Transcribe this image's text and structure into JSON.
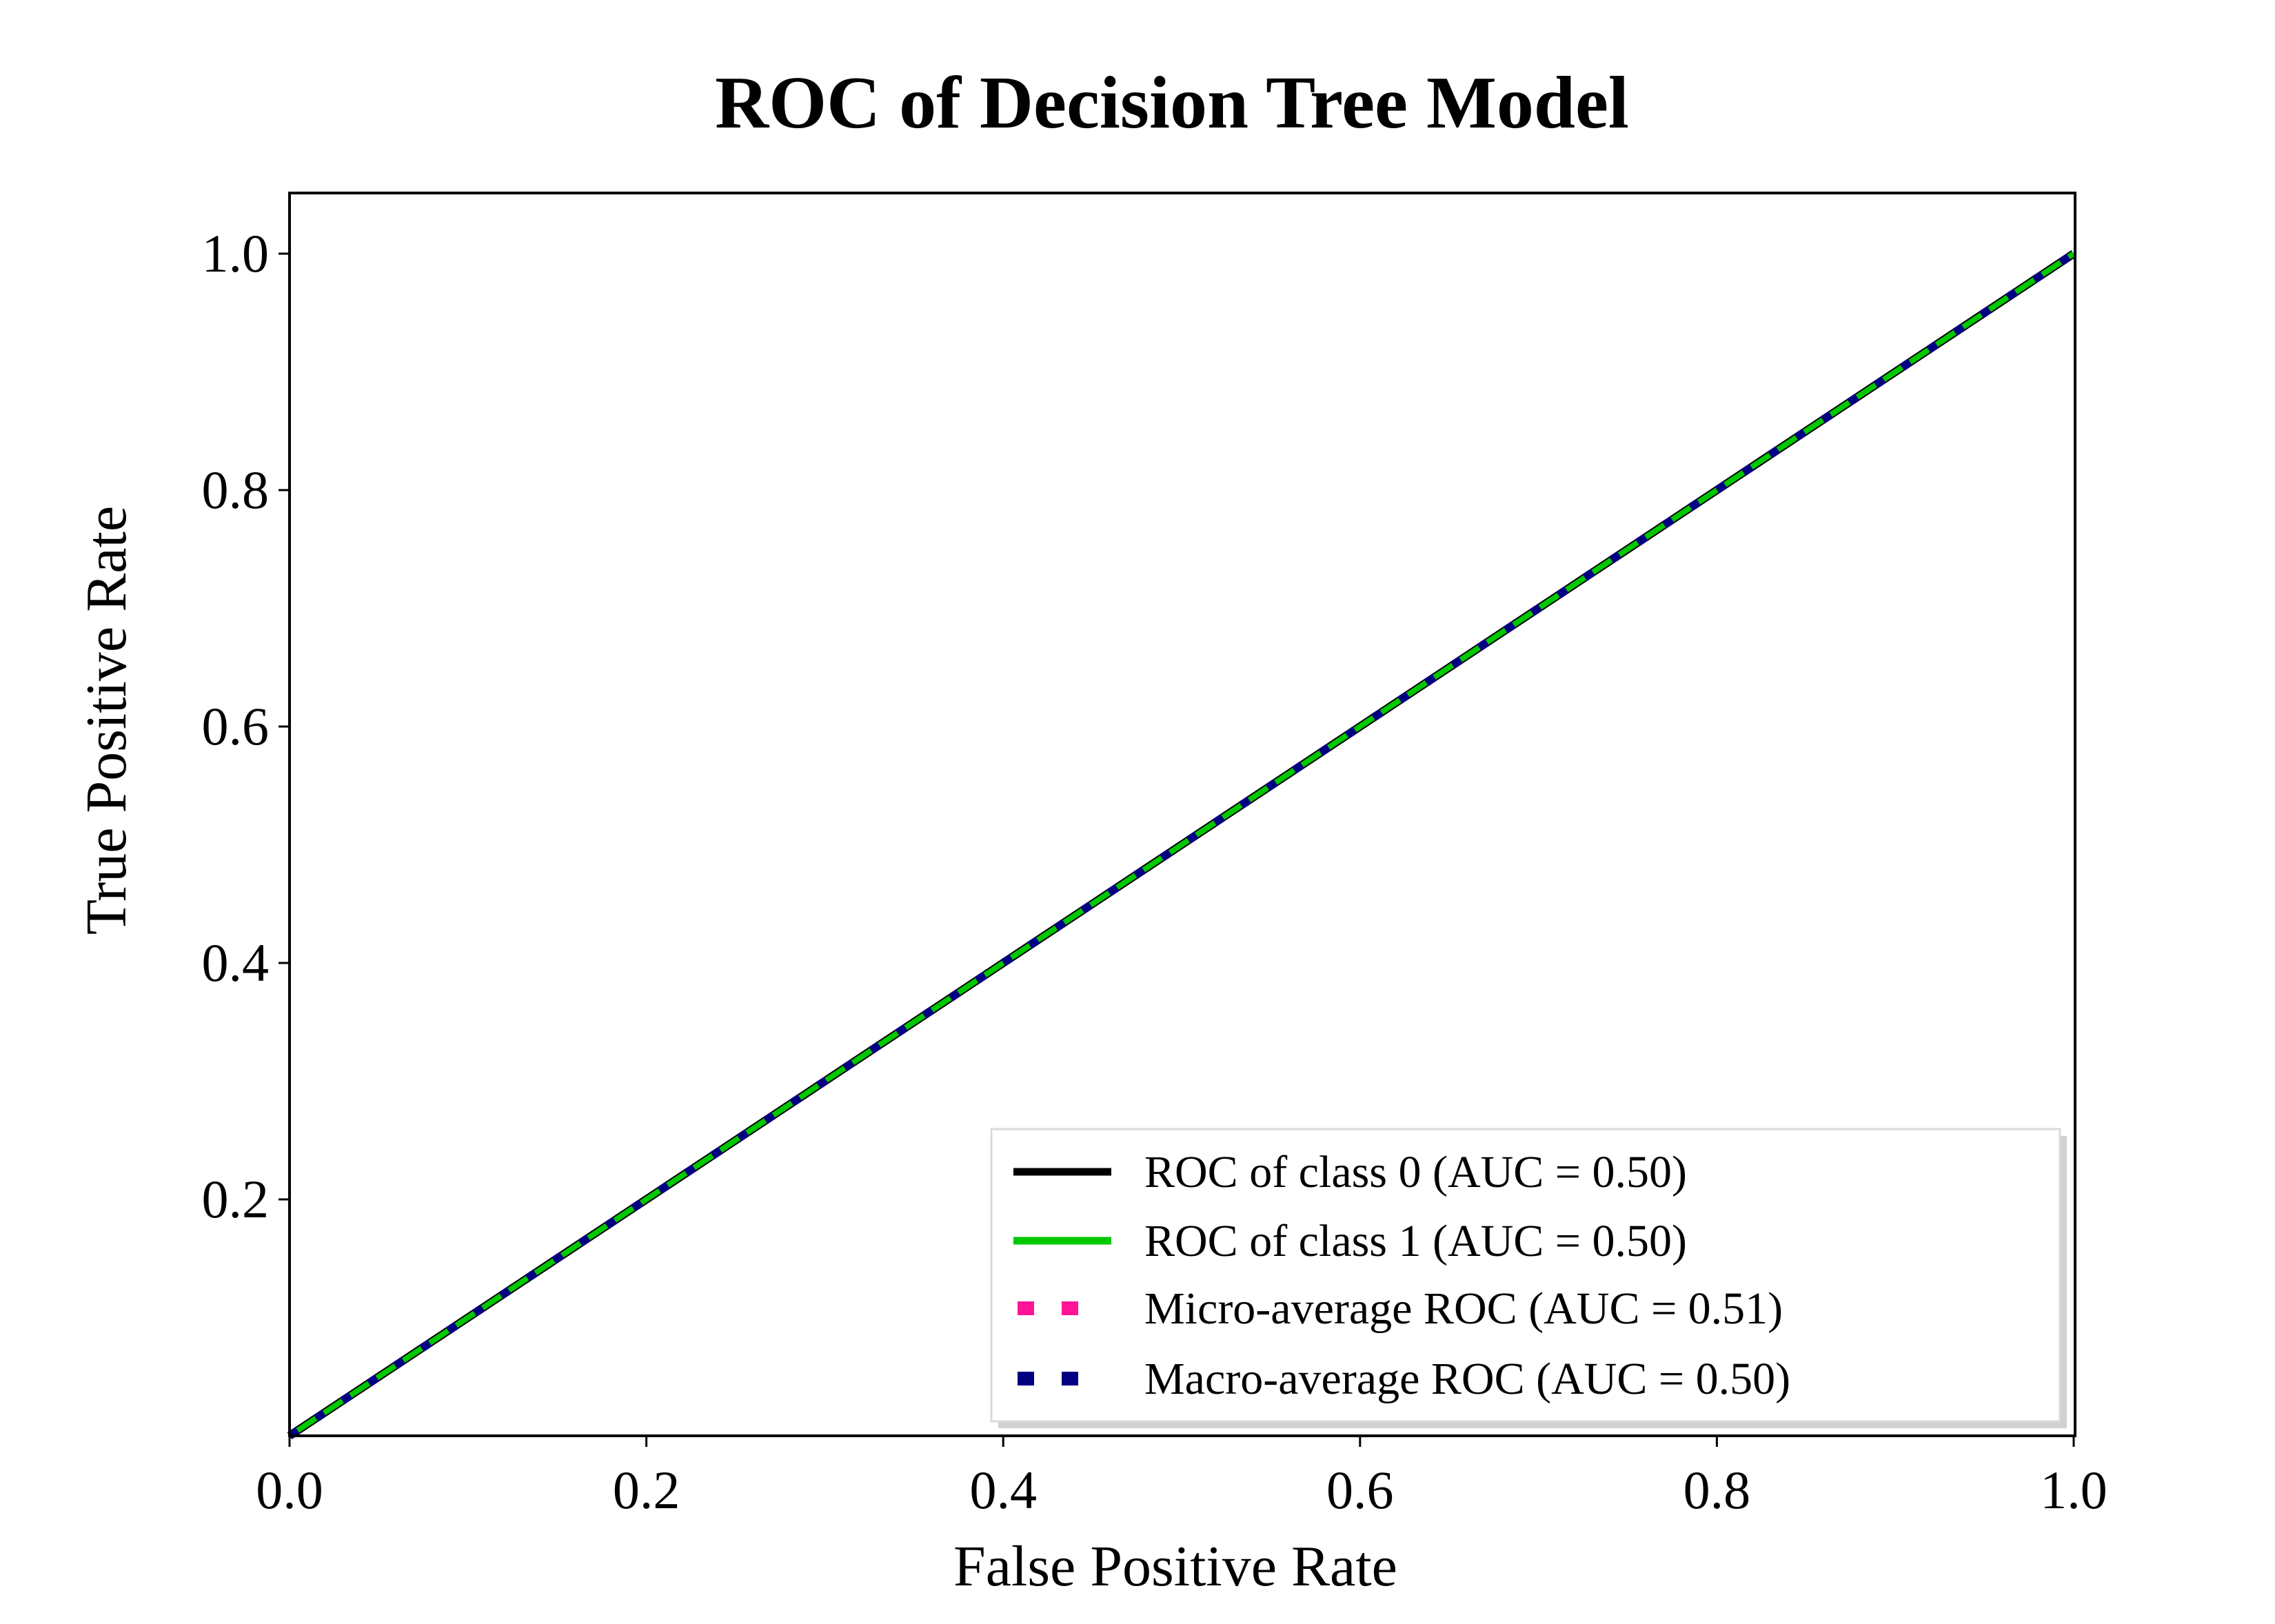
{
  "chart_data": {
    "type": "line",
    "title": "ROC of Decision Tree Model",
    "xlabel": "False Positive Rate",
    "ylabel": "True Positive Rate",
    "xlim": [
      0.0,
      1.0
    ],
    "ylim": [
      0.0,
      1.05
    ],
    "x_ticks": [
      0.0,
      0.2,
      0.4,
      0.6,
      0.8,
      1.0
    ],
    "x_tick_labels": [
      "0.0",
      "0.2",
      "0.4",
      "0.6",
      "0.8",
      "1.0"
    ],
    "y_ticks": [
      0.2,
      0.4,
      0.6,
      0.8,
      1.0
    ],
    "y_tick_labels": [
      "0.2",
      "0.4",
      "0.6",
      "0.8",
      "1.0"
    ],
    "grid": false,
    "legend_position": "lower-right",
    "series": [
      {
        "name": "ROC of class 0 (AUC = 0.50)",
        "style": "solid",
        "color": "#000000",
        "x": [
          0.0,
          1.0
        ],
        "y": [
          0.0,
          1.0
        ]
      },
      {
        "name": "ROC of class 1 (AUC = 0.50)",
        "style": "solid",
        "color": "#00c800",
        "x": [
          0.0,
          1.0
        ],
        "y": [
          0.0,
          1.0
        ]
      },
      {
        "name": "Micro-average ROC (AUC = 0.51)",
        "style": "dotted",
        "color": "#ff1493",
        "x": [
          0.0,
          1.0
        ],
        "y": [
          0.0,
          1.0
        ]
      },
      {
        "name": "Macro-average ROC (AUC = 0.50)",
        "style": "dotted",
        "color": "#000080",
        "x": [
          0.0,
          1.0
        ],
        "y": [
          0.0,
          1.0
        ]
      }
    ]
  }
}
